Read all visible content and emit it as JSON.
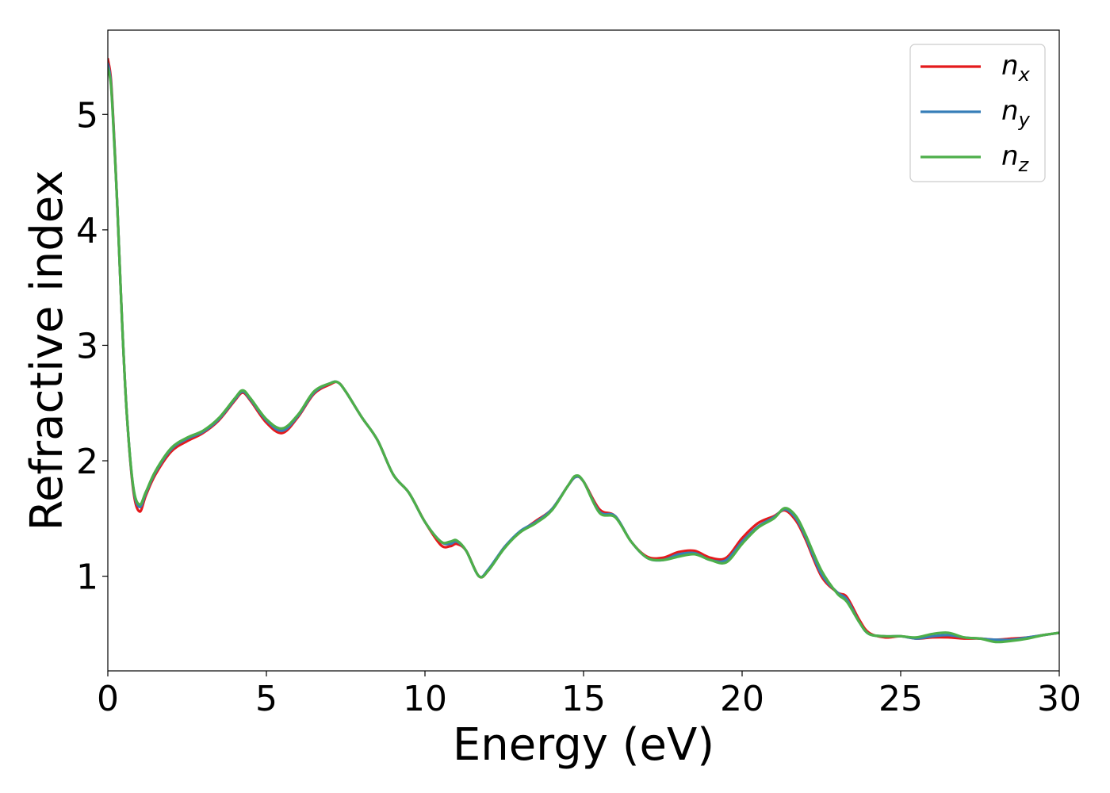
{
  "chart_data": {
    "type": "line",
    "title": "",
    "xlabel": "Energy (eV)",
    "ylabel": "Refractive index",
    "xlim": [
      0,
      30
    ],
    "ylim": [
      0.18,
      5.73
    ],
    "grid": false,
    "legend_placement": "top-right",
    "xticks": [
      0,
      5,
      10,
      15,
      20,
      25,
      30
    ],
    "yticks": [
      1,
      2,
      3,
      4,
      5
    ],
    "series": [
      {
        "name": "n_x",
        "label_main": "n",
        "label_sub": "x",
        "color": "#e41a1c",
        "x": [
          0,
          0.1,
          0.2,
          0.3,
          0.45,
          0.6,
          0.8,
          1.0,
          1.2,
          1.5,
          2.0,
          2.5,
          3.0,
          3.5,
          4.0,
          4.25,
          4.5,
          5.0,
          5.5,
          6.0,
          6.5,
          7.0,
          7.25,
          7.5,
          8.0,
          8.5,
          9.0,
          9.5,
          10.0,
          10.5,
          10.8,
          11.0,
          11.3,
          11.7,
          12.0,
          12.5,
          13.0,
          13.5,
          14.0,
          14.5,
          14.75,
          15.0,
          15.5,
          16.0,
          16.5,
          17.0,
          17.5,
          18.0,
          18.5,
          19.0,
          19.5,
          20.0,
          20.5,
          21.0,
          21.35,
          21.7,
          22.0,
          22.5,
          23.0,
          23.3,
          23.7,
          24.0,
          24.5,
          25.0,
          25.5,
          26.0,
          26.5,
          27.0,
          27.5,
          28.0,
          28.5,
          29.0,
          29.5,
          30.0
        ],
        "y": [
          5.48,
          5.3,
          4.8,
          4.2,
          3.2,
          2.4,
          1.75,
          1.56,
          1.7,
          1.88,
          2.08,
          2.17,
          2.24,
          2.35,
          2.52,
          2.59,
          2.52,
          2.33,
          2.24,
          2.38,
          2.58,
          2.66,
          2.68,
          2.6,
          2.38,
          2.18,
          1.88,
          1.72,
          1.47,
          1.27,
          1.26,
          1.28,
          1.22,
          1.0,
          1.05,
          1.25,
          1.38,
          1.48,
          1.58,
          1.78,
          1.86,
          1.82,
          1.58,
          1.52,
          1.3,
          1.17,
          1.16,
          1.21,
          1.22,
          1.16,
          1.16,
          1.33,
          1.46,
          1.52,
          1.57,
          1.48,
          1.32,
          1.0,
          0.86,
          0.82,
          0.62,
          0.51,
          0.47,
          0.48,
          0.46,
          0.47,
          0.47,
          0.46,
          0.46,
          0.45,
          0.46,
          0.47,
          0.49,
          0.51
        ]
      },
      {
        "name": "n_y",
        "label_main": "n",
        "label_sub": "y",
        "color": "#377eb8",
        "x": [
          0,
          0.1,
          0.2,
          0.3,
          0.45,
          0.6,
          0.8,
          1.0,
          1.2,
          1.5,
          2.0,
          2.5,
          3.0,
          3.5,
          4.0,
          4.25,
          4.5,
          5.0,
          5.5,
          6.0,
          6.5,
          7.0,
          7.25,
          7.5,
          8.0,
          8.5,
          9.0,
          9.5,
          10.0,
          10.5,
          10.8,
          11.0,
          11.3,
          11.7,
          12.0,
          12.5,
          13.0,
          13.5,
          14.0,
          14.5,
          14.75,
          15.0,
          15.5,
          16.0,
          16.5,
          17.0,
          17.5,
          18.0,
          18.5,
          19.0,
          19.5,
          20.0,
          20.5,
          21.0,
          21.35,
          21.7,
          22.0,
          22.5,
          23.0,
          23.3,
          23.7,
          24.0,
          24.5,
          25.0,
          25.5,
          26.0,
          26.5,
          27.0,
          27.5,
          28.0,
          28.5,
          29.0,
          29.5,
          30.0
        ],
        "y": [
          5.44,
          5.27,
          4.78,
          4.2,
          3.2,
          2.4,
          1.77,
          1.6,
          1.72,
          1.9,
          2.1,
          2.19,
          2.25,
          2.36,
          2.53,
          2.6,
          2.53,
          2.35,
          2.26,
          2.39,
          2.59,
          2.67,
          2.68,
          2.6,
          2.38,
          2.18,
          1.88,
          1.72,
          1.47,
          1.3,
          1.28,
          1.3,
          1.22,
          1.0,
          1.06,
          1.25,
          1.39,
          1.47,
          1.58,
          1.78,
          1.86,
          1.82,
          1.56,
          1.52,
          1.3,
          1.16,
          1.14,
          1.19,
          1.2,
          1.14,
          1.14,
          1.3,
          1.43,
          1.51,
          1.58,
          1.5,
          1.34,
          1.02,
          0.86,
          0.8,
          0.6,
          0.5,
          0.48,
          0.48,
          0.46,
          0.48,
          0.49,
          0.47,
          0.46,
          0.45,
          0.45,
          0.47,
          0.49,
          0.51
        ]
      },
      {
        "name": "n_z",
        "label_main": "n",
        "label_sub": "z",
        "color": "#4daf4a",
        "x": [
          0,
          0.1,
          0.2,
          0.3,
          0.45,
          0.6,
          0.8,
          1.0,
          1.2,
          1.5,
          2.0,
          2.5,
          3.0,
          3.5,
          4.0,
          4.25,
          4.5,
          5.0,
          5.5,
          6.0,
          6.5,
          7.0,
          7.25,
          7.5,
          8.0,
          8.5,
          9.0,
          9.5,
          10.0,
          10.5,
          10.8,
          11.0,
          11.3,
          11.7,
          12.0,
          12.5,
          13.0,
          13.5,
          14.0,
          14.5,
          14.75,
          15.0,
          15.5,
          16.0,
          16.5,
          17.0,
          17.5,
          18.0,
          18.5,
          19.0,
          19.5,
          20.0,
          20.5,
          21.0,
          21.35,
          21.7,
          22.0,
          22.5,
          23.0,
          23.3,
          23.7,
          24.0,
          24.5,
          25.0,
          25.5,
          26.0,
          26.5,
          27.0,
          27.5,
          28.0,
          28.5,
          29.0,
          29.5,
          30.0
        ],
        "y": [
          5.4,
          5.25,
          4.76,
          4.2,
          3.2,
          2.4,
          1.78,
          1.62,
          1.73,
          1.91,
          2.11,
          2.2,
          2.26,
          2.37,
          2.54,
          2.61,
          2.54,
          2.36,
          2.28,
          2.4,
          2.6,
          2.67,
          2.68,
          2.6,
          2.38,
          2.18,
          1.88,
          1.72,
          1.47,
          1.3,
          1.3,
          1.31,
          1.22,
          1.0,
          1.05,
          1.24,
          1.38,
          1.46,
          1.57,
          1.78,
          1.87,
          1.82,
          1.55,
          1.51,
          1.3,
          1.16,
          1.14,
          1.17,
          1.19,
          1.14,
          1.12,
          1.28,
          1.42,
          1.5,
          1.59,
          1.52,
          1.36,
          1.05,
          0.85,
          0.78,
          0.6,
          0.5,
          0.48,
          0.48,
          0.47,
          0.5,
          0.51,
          0.47,
          0.46,
          0.43,
          0.44,
          0.46,
          0.49,
          0.51
        ]
      }
    ]
  }
}
